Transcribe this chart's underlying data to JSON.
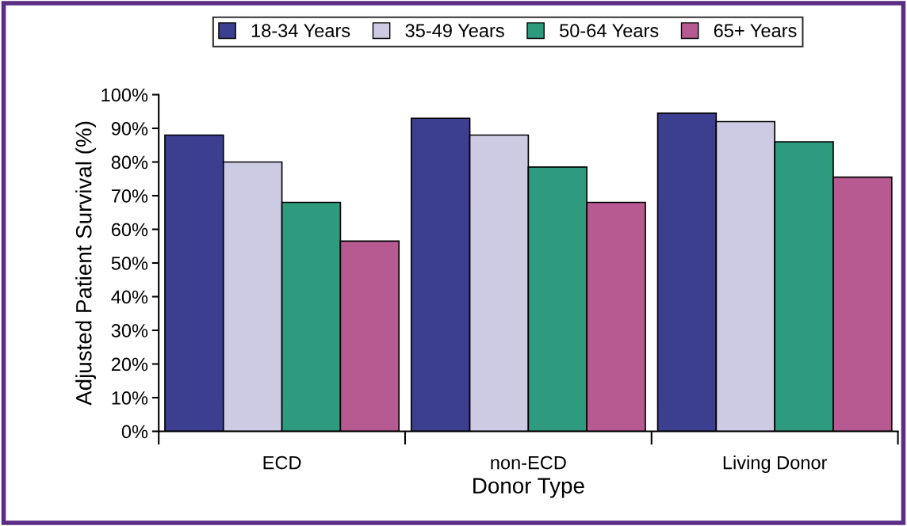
{
  "chart_data": {
    "type": "bar",
    "xlabel": "Donor Type",
    "ylabel": "Adjusted Patient Survival (%)",
    "categories": [
      "ECD",
      "non-ECD",
      "Living Donor"
    ],
    "series": [
      {
        "name": "18-34 Years",
        "color": "#3c3f8f",
        "values": [
          88,
          93,
          94.5
        ]
      },
      {
        "name": "35-49 Years",
        "color": "#cdcbe3",
        "values": [
          80,
          88,
          92
        ]
      },
      {
        "name": "50-64 Years",
        "color": "#2e9a7e",
        "values": [
          68,
          78.5,
          86
        ]
      },
      {
        "name": "65+ Years",
        "color": "#b85a92",
        "values": [
          56.5,
          68,
          75.5
        ]
      }
    ],
    "ylim": [
      0,
      100
    ],
    "yticks": [
      {
        "value": 0,
        "label": "0%"
      },
      {
        "value": 10,
        "label": "10%"
      },
      {
        "value": 20,
        "label": "20%"
      },
      {
        "value": 30,
        "label": "30%"
      },
      {
        "value": 40,
        "label": "40%"
      },
      {
        "value": 50,
        "label": "50%"
      },
      {
        "value": 60,
        "label": "60%"
      },
      {
        "value": 70,
        "label": "70%"
      },
      {
        "value": 80,
        "label": "80%"
      },
      {
        "value": 90,
        "label": "90%"
      },
      {
        "value": 100,
        "label": "100%"
      }
    ],
    "grid": false,
    "legend": "top"
  }
}
